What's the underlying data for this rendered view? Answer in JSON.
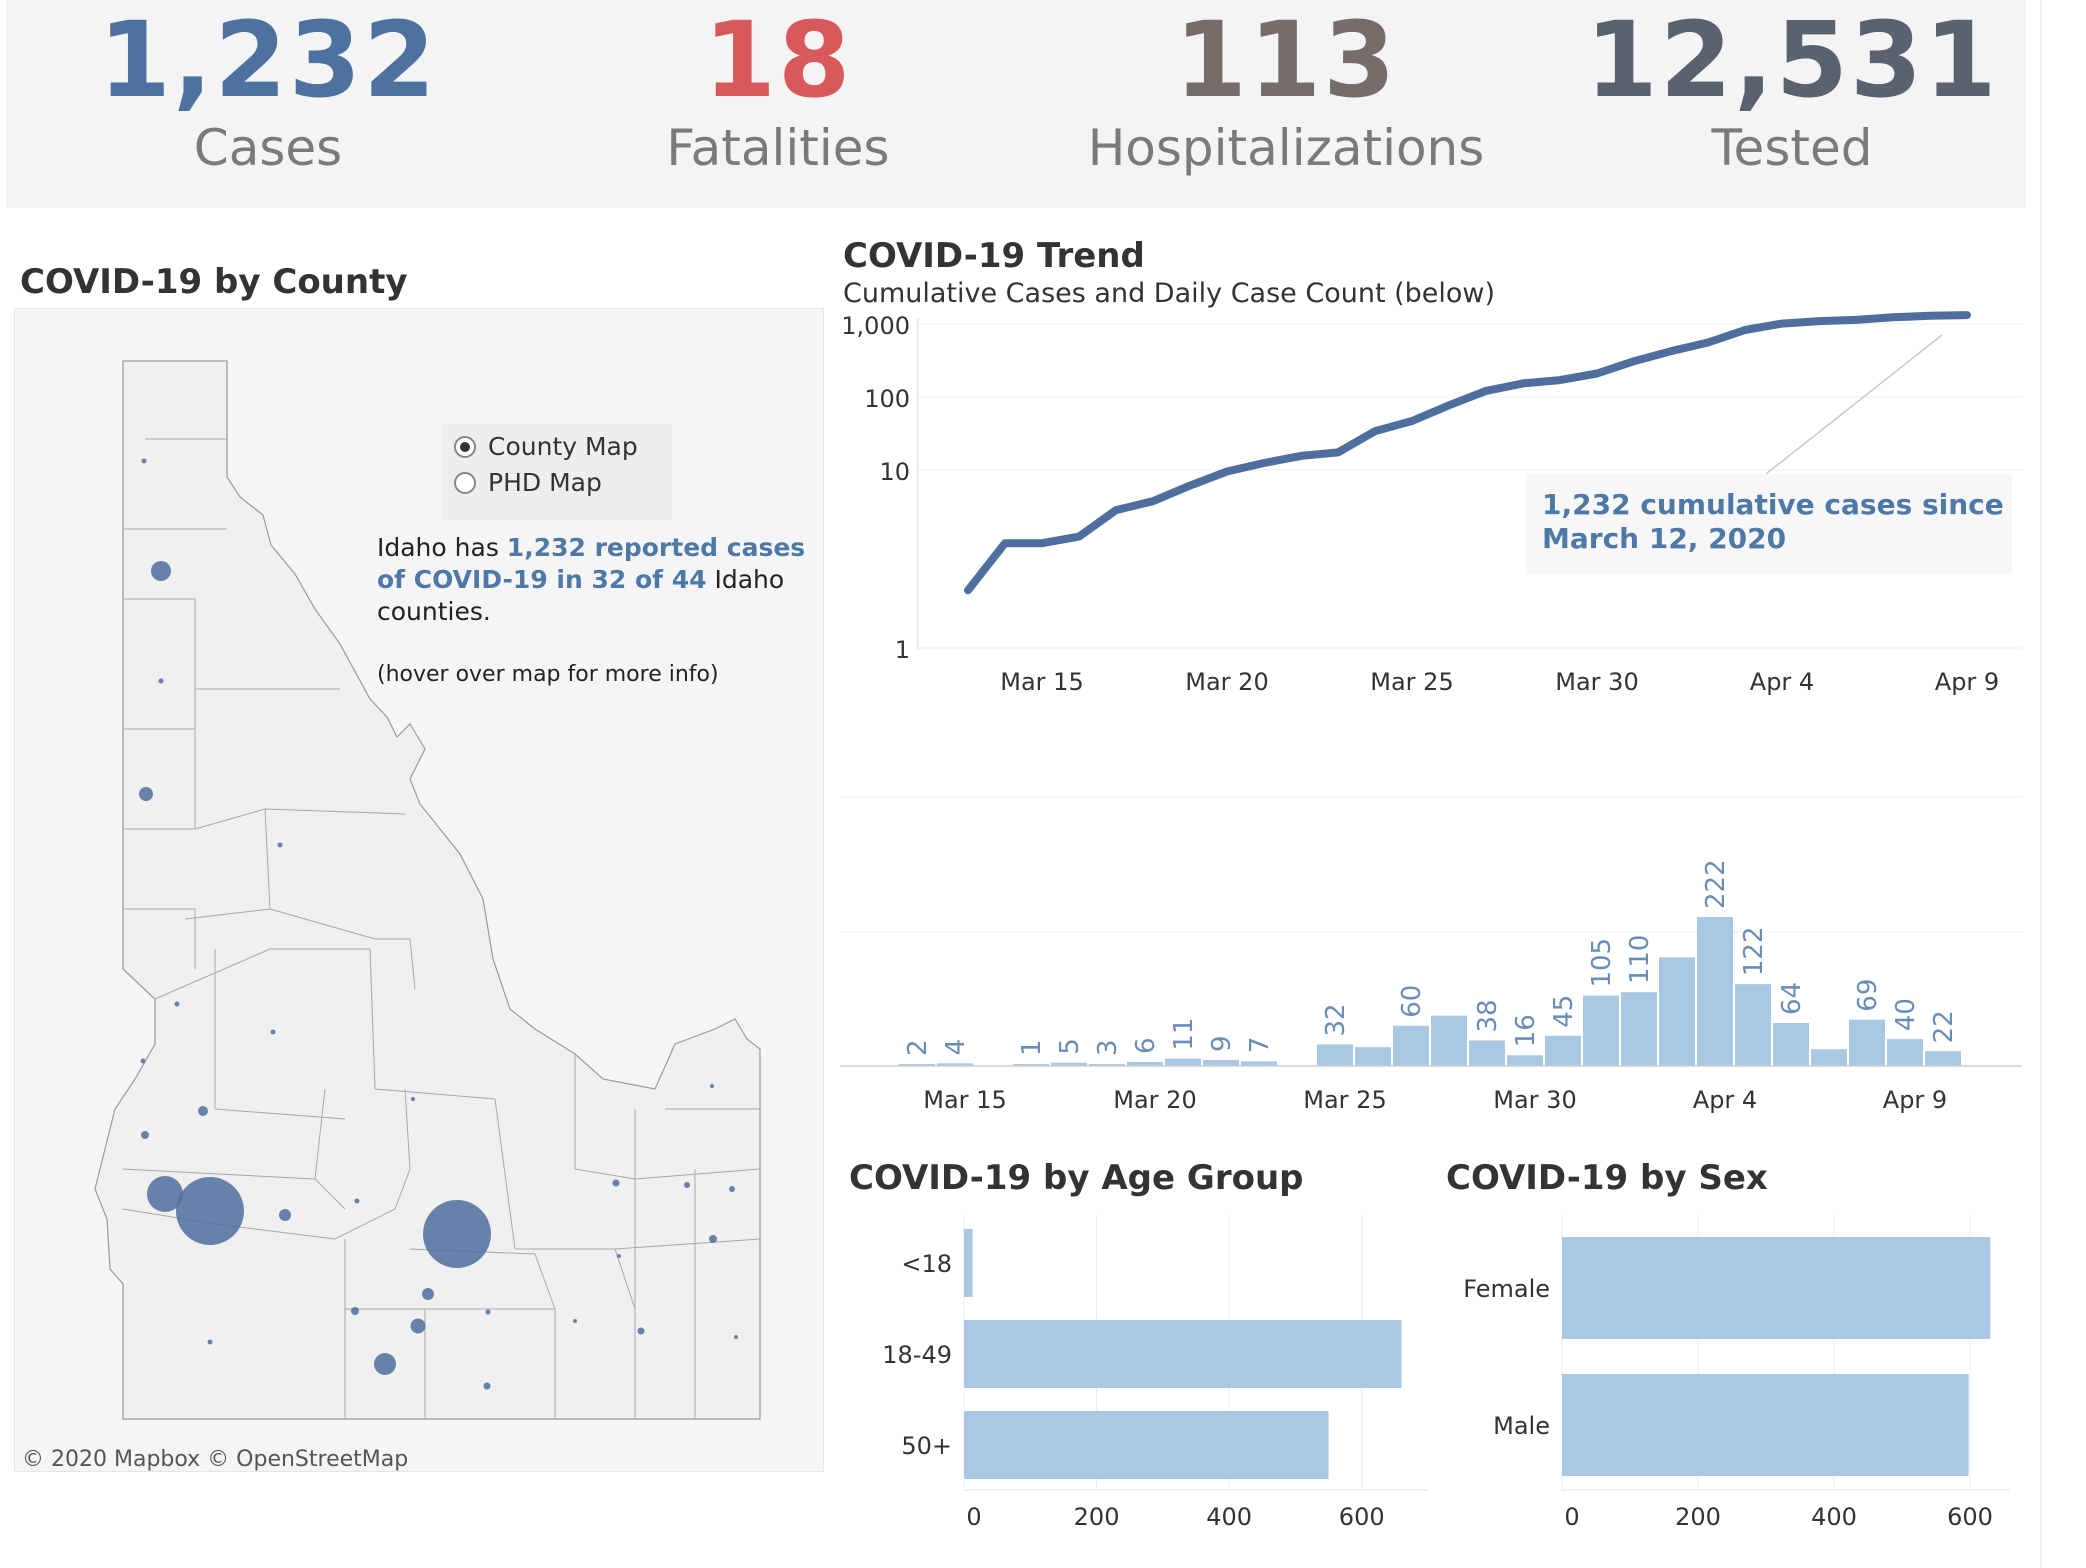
{
  "kpis": [
    {
      "value": "1,232",
      "label": "Cases",
      "color": "#4e72a0"
    },
    {
      "value": "18",
      "label": "Fatalities",
      "color": "#d9585b"
    },
    {
      "value": "113",
      "label": "Hospitalizations",
      "color": "#776c6c"
    },
    {
      "value": "12,531",
      "label": "Tested",
      "color": "#5a6270"
    }
  ],
  "map": {
    "title": "COVID-19 by County",
    "options": [
      {
        "label": "County Map",
        "selected": true
      },
      {
        "label": "PHD Map",
        "selected": false
      }
    ],
    "summary_prefix": "Idaho has ",
    "summary_highlight": "1,232 reported cases of COVID-19 in 32 of 44",
    "summary_suffix": " Idaho counties.",
    "hover_note": "(hover over map for more info)",
    "credit": "© 2020 Mapbox  © OpenStreetMap",
    "bubble_color": "#4e6e9e"
  },
  "trend": {
    "title": "COVID-19 Trend",
    "subtitle": "Cumulative Cases and Daily Case Count (below)",
    "annotation_line1": "1,232 cumulative cases since",
    "annotation_line2": "March 12, 2020"
  },
  "age": {
    "title": "COVID-19 by Age Group"
  },
  "sex": {
    "title": "COVID-19 by Sex"
  },
  "chart_data": [
    {
      "type": "line",
      "name": "cumulative",
      "yscale": "log",
      "y_ticks": [
        "1,000",
        "100",
        "10",
        "1"
      ],
      "x_ticks": [
        "Mar 15",
        "Mar 20",
        "Mar 25",
        "Mar 30",
        "Apr 4",
        "Apr 9"
      ],
      "x": [
        "Mar 13",
        "Mar 14",
        "Mar 15",
        "Mar 16",
        "Mar 17",
        "Mar 18",
        "Mar 19",
        "Mar 20",
        "Mar 21",
        "Mar 22",
        "Mar 23",
        "Mar 24",
        "Mar 25",
        "Mar 26",
        "Mar 27",
        "Mar 28",
        "Mar 29",
        "Mar 30",
        "Mar 31",
        "Apr 1",
        "Apr 2",
        "Apr 3",
        "Apr 4",
        "Apr 5",
        "Apr 6",
        "Apr 7",
        "Apr 8",
        "Apr 9"
      ],
      "values": [
        2,
        6,
        6,
        7,
        13,
        16,
        23,
        32,
        39,
        46,
        50,
        82,
        104,
        150,
        210,
        250,
        270,
        315,
        420,
        530,
        650,
        870,
        1010,
        1070,
        1100,
        1170,
        1210,
        1232
      ],
      "color": "#4e6e9e"
    },
    {
      "type": "bar",
      "name": "daily",
      "x_ticks": [
        "Mar 15",
        "Mar 20",
        "Mar 25",
        "Mar 30",
        "Apr 4",
        "Apr 9"
      ],
      "x": [
        "Mar 13",
        "Mar 14",
        "Mar 15",
        "Mar 16",
        "Mar 17",
        "Mar 18",
        "Mar 19",
        "Mar 20",
        "Mar 21",
        "Mar 22",
        "Mar 23",
        "Mar 24",
        "Mar 25",
        "Mar 26",
        "Mar 27",
        "Mar 28",
        "Mar 29",
        "Mar 30",
        "Mar 31",
        "Apr 1",
        "Apr 2",
        "Apr 3",
        "Apr 4",
        "Apr 5",
        "Apr 6",
        "Apr 7",
        "Apr 8",
        "Apr 9"
      ],
      "values": [
        2,
        4,
        null,
        1,
        5,
        3,
        6,
        11,
        9,
        7,
        null,
        32,
        28,
        60,
        75,
        38,
        16,
        45,
        105,
        110,
        162,
        222,
        122,
        64,
        25,
        69,
        40,
        22
      ],
      "labels": [
        "2",
        "4",
        "",
        "1",
        "5",
        "3",
        "6",
        "11",
        "9",
        "7",
        "",
        "32",
        "",
        "60",
        "",
        "38",
        "16",
        "45",
        "105",
        "110",
        "",
        "222",
        "122",
        "64",
        "",
        "69",
        "40",
        "22"
      ],
      "color": "#a9c8e4"
    },
    {
      "type": "bar",
      "orientation": "horizontal",
      "name": "age",
      "categories": [
        "<18",
        "18-49",
        "50+"
      ],
      "values": [
        13,
        660,
        550
      ],
      "x_ticks": [
        "0",
        "200",
        "400",
        "600"
      ],
      "xlim": [
        0,
        700
      ],
      "color": "#a9c8e4"
    },
    {
      "type": "bar",
      "orientation": "horizontal",
      "name": "sex",
      "categories": [
        "Female",
        "Male"
      ],
      "values": [
        630,
        598
      ],
      "x_ticks": [
        "0",
        "200",
        "400",
        "600"
      ],
      "xlim": [
        0,
        650
      ],
      "color": "#a9c8e4"
    }
  ]
}
